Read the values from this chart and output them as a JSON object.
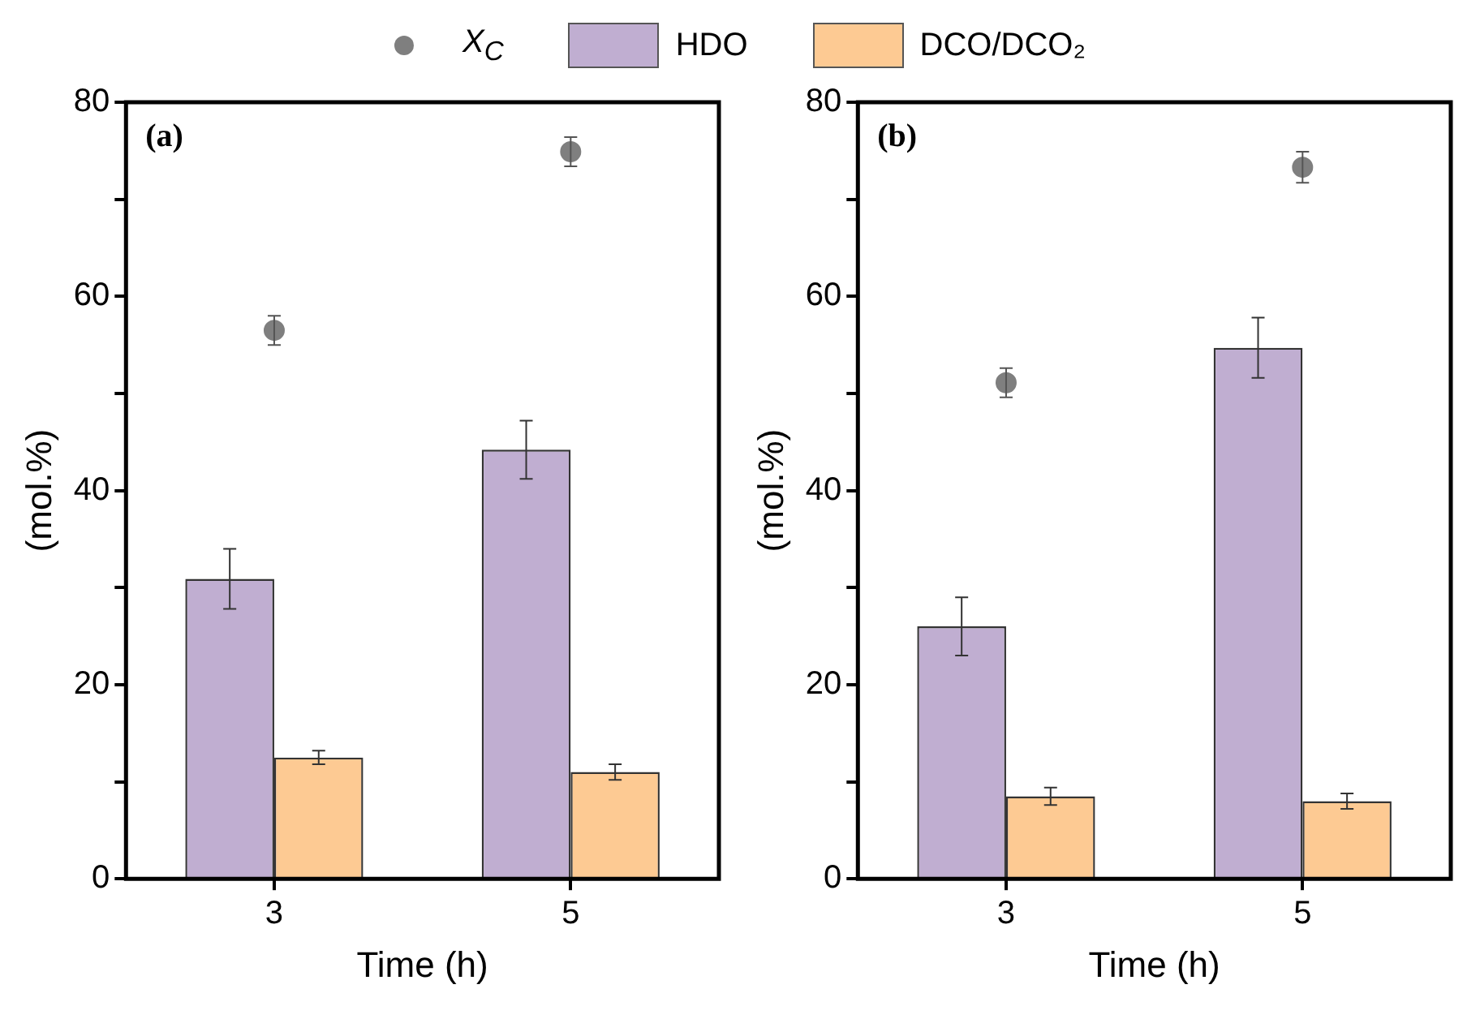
{
  "chart_data": [
    {
      "type": "bar",
      "categories": [
        "3",
        "5"
      ],
      "xlabel": "Time (h)",
      "ylabel": "(mol.%)",
      "ylim": [
        0,
        80
      ],
      "yticks": [
        0,
        {
          "value": 10,
          "label": null
        },
        20,
        {
          "value": 30,
          "label": null
        },
        40,
        {
          "value": 50,
          "label": null
        },
        60,
        {
          "value": 70,
          "label": null
        },
        80
      ],
      "grid": false,
      "legend": "top",
      "annotations": [
        "(a)"
      ],
      "series": [
        {
          "name": "X$_{C}$",
          "type": "scatter",
          "marker": "circle",
          "x": [
            "3",
            "5"
          ],
          "color": "#7f7f7f",
          "values": [
            56.5,
            74.9
          ],
          "errors": [
            1.5,
            1.5
          ]
        },
        {
          "name": "HDO",
          "color": "#c0aed1",
          "values": [
            30.9,
            44.2
          ],
          "errors": [
            3.1,
            3.0
          ]
        },
        {
          "name": "DCO/DCO₂",
          "color": "#fdca93",
          "values": [
            12.5,
            11.0
          ],
          "errors": [
            0.7,
            0.8
          ]
        }
      ]
    },
    {
      "type": "bar",
      "categories": [
        "3",
        "5"
      ],
      "xlabel": "Time (h)",
      "ylabel": "(mol.%)",
      "ylim": [
        0,
        80
      ],
      "yticks": [
        0,
        {
          "value": 10,
          "label": null
        },
        20,
        {
          "value": 30,
          "label": null
        },
        40,
        {
          "value": 50,
          "label": null
        },
        60,
        {
          "value": 70,
          "label": null
        },
        80
      ],
      "grid": false,
      "annotations": [
        "(b)"
      ],
      "series": [
        {
          "type": "scatter",
          "marker": "circle",
          "x": [
            "3",
            "5"
          ],
          "color": "#7f7f7f",
          "values": [
            51.1,
            73.3
          ],
          "errors": [
            1.5,
            1.6
          ]
        },
        {
          "color": "#c0aed1",
          "values": [
            26.0,
            54.7
          ],
          "errors": [
            3.0,
            3.1
          ]
        },
        {
          "color": "#fdca93",
          "values": [
            8.5,
            8.0
          ],
          "errors": [
            0.9,
            0.8
          ]
        }
      ]
    }
  ]
}
